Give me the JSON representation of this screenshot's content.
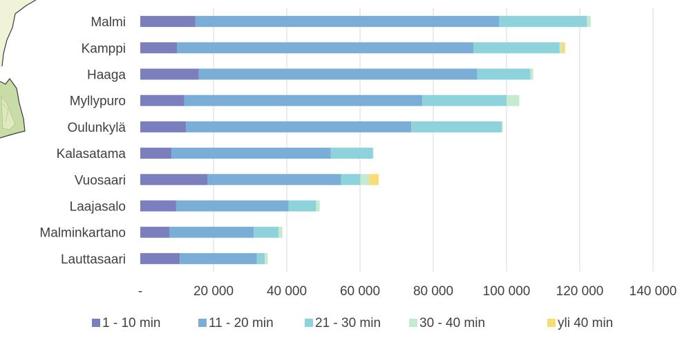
{
  "chart_data": {
    "type": "bar",
    "orientation": "horizontal",
    "stacked": true,
    "categories": [
      "Malmi",
      "Kamppi",
      "Haaga",
      "Myllypuro",
      "Oulunkylä",
      "Kalasatama",
      "Vuosaari",
      "Laajasalo",
      "Malminkartano",
      "Lauttasaari"
    ],
    "series": [
      {
        "name": "1 - 10 min",
        "color": "#7b7fbd",
        "values": [
          15000,
          10000,
          16000,
          12000,
          12500,
          8500,
          18300,
          9800,
          8000,
          10800
        ]
      },
      {
        "name": "11 - 20 min",
        "color": "#7aaed6",
        "values": [
          83000,
          81000,
          76000,
          65000,
          61500,
          43500,
          36500,
          30700,
          23000,
          21000
        ]
      },
      {
        "name": "21 - 30 min",
        "color": "#8ed3db",
        "values": [
          24000,
          23500,
          14500,
          23000,
          24700,
          11500,
          5300,
          7500,
          6800,
          2200
        ]
      },
      {
        "name": "30 - 40 min",
        "color": "#c5ead0",
        "values": [
          1000,
          500,
          800,
          3500,
          300,
          200,
          2500,
          1000,
          1000,
          800
        ]
      },
      {
        "name": "yli 40 min",
        "color": "#fadc74",
        "values": [
          0,
          1000,
          0,
          0,
          0,
          0,
          2500,
          0,
          0,
          0
        ]
      }
    ],
    "xlim": [
      0,
      140000
    ],
    "xticks": [
      0,
      20000,
      40000,
      60000,
      80000,
      100000,
      120000,
      140000
    ],
    "xtick_labels": [
      "-",
      "20 000",
      "40 000",
      "60 000",
      "80 000",
      "100 000",
      "120 000",
      "140 000"
    ],
    "grid": true,
    "legend_position": "bottom"
  },
  "colors": {
    "map_stroke": "#3a3a3a",
    "map_fill_light": "#f1f3d8",
    "map_fill_green": "#c9dca6"
  }
}
